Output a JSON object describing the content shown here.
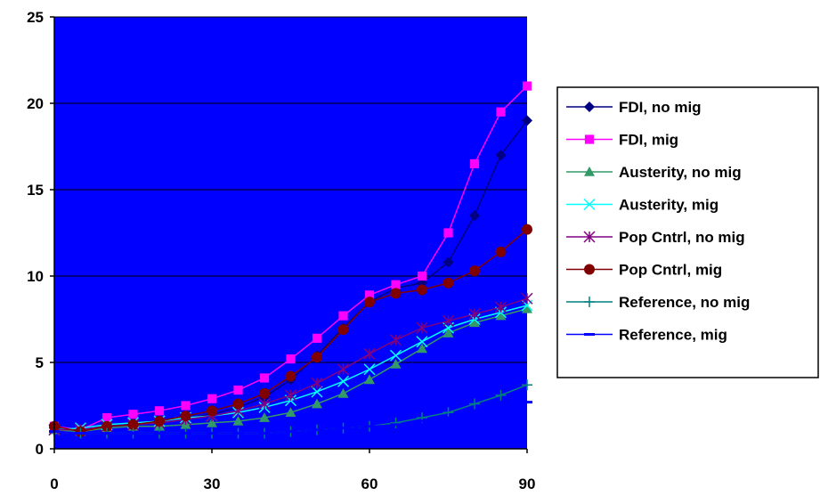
{
  "chart_data": {
    "type": "line",
    "title": "",
    "xlabel": "",
    "ylabel": "",
    "xlim": [
      0,
      90
    ],
    "ylim": [
      0,
      25
    ],
    "x_ticks": [
      "0",
      "30",
      "60",
      "90"
    ],
    "y_ticks": [
      "0",
      "5",
      "10",
      "15",
      "20",
      "25"
    ],
    "plot_background": "#0000ff",
    "grid": "horizontal major",
    "legend_position": "right",
    "x": [
      0,
      5,
      10,
      15,
      20,
      25,
      30,
      35,
      40,
      45,
      50,
      55,
      60,
      65,
      70,
      75,
      80,
      85,
      90
    ],
    "series": [
      {
        "name": "FDI, no mig",
        "color": "#000080",
        "marker": "diamond",
        "values": [
          1.2,
          1.0,
          1.4,
          1.5,
          1.6,
          1.8,
          2.0,
          2.4,
          3.0,
          4.0,
          5.4,
          7.0,
          8.5,
          9.3,
          9.6,
          10.8,
          13.5,
          17.0,
          19.0
        ]
      },
      {
        "name": "FDI, mig",
        "color": "#ff00ff",
        "marker": "square",
        "values": [
          1.3,
          1.1,
          1.8,
          2.0,
          2.2,
          2.5,
          2.9,
          3.4,
          4.1,
          5.2,
          6.4,
          7.7,
          8.9,
          9.5,
          10.0,
          12.5,
          16.5,
          19.5,
          21.0
        ]
      },
      {
        "name": "Austerity, no mig",
        "color": "#339966",
        "marker": "triangle",
        "values": [
          1.1,
          1.0,
          1.2,
          1.3,
          1.3,
          1.4,
          1.5,
          1.6,
          1.8,
          2.1,
          2.6,
          3.2,
          4.0,
          4.9,
          5.8,
          6.7,
          7.3,
          7.7,
          8.1
        ]
      },
      {
        "name": "Austerity, mig",
        "color": "#00ffff",
        "marker": "x",
        "values": [
          1.1,
          1.2,
          1.4,
          1.5,
          1.6,
          1.8,
          1.9,
          2.1,
          2.4,
          2.8,
          3.3,
          3.9,
          4.6,
          5.4,
          6.2,
          7.0,
          7.5,
          7.9,
          8.3
        ]
      },
      {
        "name": "Pop Cntrl, no mig",
        "color": "#800080",
        "marker": "star",
        "values": [
          1.1,
          1.1,
          1.3,
          1.4,
          1.5,
          1.7,
          1.9,
          2.2,
          2.6,
          3.1,
          3.8,
          4.6,
          5.5,
          6.3,
          7.0,
          7.4,
          7.8,
          8.2,
          8.7
        ]
      },
      {
        "name": "Pop Cntrl, mig",
        "color": "#800000",
        "marker": "circle",
        "values": [
          1.3,
          1.0,
          1.3,
          1.4,
          1.6,
          1.9,
          2.2,
          2.6,
          3.2,
          4.2,
          5.3,
          6.9,
          8.5,
          9.0,
          9.2,
          9.6,
          10.3,
          11.4,
          12.7
        ]
      },
      {
        "name": "Reference, no mig",
        "color": "#008080",
        "marker": "plus",
        "values": [
          1.0,
          0.9,
          0.9,
          0.9,
          0.9,
          0.9,
          0.9,
          0.9,
          0.9,
          1.0,
          1.1,
          1.2,
          1.3,
          1.5,
          1.8,
          2.1,
          2.6,
          3.1,
          3.7
        ]
      },
      {
        "name": "Reference, mig",
        "color": "#0000ff",
        "marker": "dash",
        "values": [
          1.0,
          0.9,
          0.9,
          0.9,
          0.9,
          0.9,
          0.9,
          0.9,
          0.9,
          1.0,
          1.1,
          1.2,
          1.3,
          1.4,
          1.6,
          1.8,
          2.1,
          2.4,
          2.7
        ]
      }
    ]
  }
}
